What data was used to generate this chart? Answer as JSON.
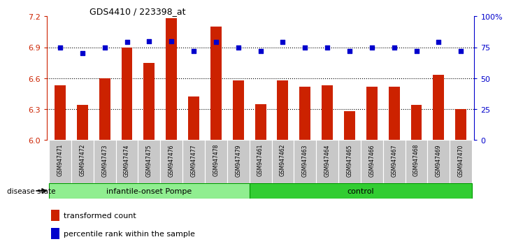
{
  "title": "GDS4410 / 223398_at",
  "samples": [
    "GSM947471",
    "GSM947472",
    "GSM947473",
    "GSM947474",
    "GSM947475",
    "GSM947476",
    "GSM947477",
    "GSM947478",
    "GSM947479",
    "GSM947461",
    "GSM947462",
    "GSM947463",
    "GSM947464",
    "GSM947465",
    "GSM947466",
    "GSM947467",
    "GSM947468",
    "GSM947469",
    "GSM947470"
  ],
  "bar_values": [
    6.53,
    6.34,
    6.6,
    6.9,
    6.75,
    7.18,
    6.42,
    7.1,
    6.58,
    6.35,
    6.58,
    6.52,
    6.53,
    6.28,
    6.52,
    6.52,
    6.34,
    6.63,
    6.3
  ],
  "percentile_values": [
    75,
    70,
    75,
    79,
    80,
    80,
    72,
    79,
    75,
    72,
    79,
    75,
    75,
    72,
    75,
    75,
    72,
    79,
    72
  ],
  "group_labels": [
    "infantile-onset Pompe",
    "control"
  ],
  "group_sizes": [
    9,
    10
  ],
  "bar_color": "#CC2200",
  "dot_color": "#0000CC",
  "ylim_left": [
    6.0,
    7.2
  ],
  "ylim_right": [
    0,
    100
  ],
  "yticks_left": [
    6.0,
    6.3,
    6.6,
    6.9,
    7.2
  ],
  "yticks_right": [
    0,
    25,
    50,
    75,
    100
  ],
  "ytick_labels_right": [
    "0",
    "25",
    "50",
    "75",
    "100%"
  ],
  "gridline_yticks": [
    6.3,
    6.6,
    6.9
  ],
  "disease_state_label": "disease state",
  "legend_bar_label": "transformed count",
  "legend_dot_label": "percentile rank within the sample",
  "sample_box_color": "#C8C8C8",
  "group1_color": "#90EE90",
  "group2_color": "#32CD32"
}
